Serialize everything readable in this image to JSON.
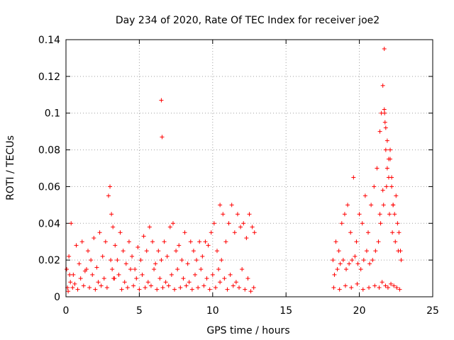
{
  "chart_data": {
    "type": "scatter",
    "title": "Day 234 of 2020, Rate Of TEC Index for receiver joe2",
    "xlabel": "GPS time / hours",
    "ylabel": "ROTI / TECUs",
    "xlim": [
      0,
      25
    ],
    "ylim": [
      0,
      0.14
    ],
    "x_ticks": [
      0,
      5,
      10,
      15,
      20,
      25
    ],
    "y_ticks": [
      0,
      0.02,
      0.04,
      0.06,
      0.08,
      0.1,
      0.12,
      0.14
    ],
    "x_tick_labels": [
      "0",
      "5",
      "10",
      "15",
      "20",
      "25"
    ],
    "y_tick_labels": [
      "0",
      "0.02",
      "0.04",
      "0.06",
      "0.08",
      "0.1",
      "0.12",
      "0.14"
    ],
    "grid": true,
    "marker": "+",
    "color": "#ff0000",
    "series": [
      {
        "x": [
          0.05,
          0.2,
          0.35,
          0.5,
          0.7,
          0.9,
          1.1,
          1.3,
          1.5,
          1.7,
          1.9,
          2.1,
          2.3,
          2.5,
          2.7,
          2.9,
          3.0,
          3.1,
          3.2,
          3.35,
          3.5,
          3.7,
          3.9,
          4.1,
          4.3,
          4.5,
          4.7,
          4.9,
          5.1,
          5.3,
          5.5,
          5.7,
          5.9,
          6.1,
          6.3,
          6.5,
          6.55,
          6.7,
          6.9,
          7.1,
          7.3,
          7.5,
          7.7,
          7.9,
          8.1,
          8.3,
          8.5,
          8.7,
          8.9,
          9.1,
          9.3,
          9.5,
          9.7,
          9.9,
          10.1,
          10.3,
          10.5,
          10.7,
          10.9,
          11.1,
          11.3,
          11.5,
          11.7,
          11.9,
          12.1,
          12.3,
          12.5,
          12.7,
          12.85,
          0.1,
          0.3,
          0.25,
          0.6,
          1.0,
          1.4,
          1.8,
          2.2,
          2.6,
          3.05,
          3.15,
          3.3,
          3.6,
          4.0,
          4.4,
          4.8,
          5.2,
          5.6,
          6.0,
          6.4,
          6.5,
          6.8,
          7.2,
          7.6,
          8.0,
          8.4,
          8.8,
          9.2,
          9.6,
          10.0,
          10.4,
          10.6,
          10.8,
          11.2,
          11.6,
          12.0,
          12.4,
          12.8,
          0.15,
          0.45,
          0.8,
          1.2,
          1.6,
          2.0,
          2.4,
          2.8,
          3.25,
          3.8,
          4.2,
          4.6,
          5.0,
          5.4,
          5.8,
          6.2,
          6.6,
          7.0,
          7.4,
          7.8,
          8.2,
          8.6,
          9.0,
          9.4,
          9.8,
          10.2,
          10.5,
          11.0,
          11.4,
          11.8,
          12.2,
          12.6,
          18.2,
          18.4,
          18.6,
          18.8,
          19.0,
          19.2,
          19.4,
          19.6,
          19.8,
          20.0,
          20.2,
          20.4,
          20.6,
          20.8,
          21.0,
          21.2,
          21.4,
          21.5,
          21.6,
          21.7,
          21.75,
          21.8,
          21.9,
          22.0,
          22.1,
          22.2,
          22.3,
          22.4,
          22.5,
          22.6,
          22.7,
          22.8,
          18.3,
          18.5,
          18.7,
          18.9,
          19.1,
          19.3,
          19.5,
          19.7,
          19.9,
          20.1,
          20.3,
          20.5,
          20.7,
          20.9,
          21.1,
          21.3,
          21.45,
          21.65,
          21.85,
          22.05,
          22.25,
          22.45,
          22.65,
          22.85,
          18.25,
          18.65,
          19.05,
          19.45,
          19.85,
          20.25,
          20.65,
          21.05,
          21.35,
          21.55,
          21.78,
          21.95,
          22.15,
          22.35,
          22.55,
          22.75,
          21.7,
          21.8,
          21.72,
          21.9,
          22.1,
          22.2,
          22.0,
          21.6,
          21.4,
          22.3
        ],
        "y": [
          0.015,
          0.022,
          0.04,
          0.012,
          0.028,
          0.018,
          0.03,
          0.014,
          0.025,
          0.02,
          0.032,
          0.016,
          0.035,
          0.022,
          0.03,
          0.055,
          0.06,
          0.045,
          0.038,
          0.028,
          0.02,
          0.035,
          0.025,
          0.018,
          0.03,
          0.022,
          0.015,
          0.027,
          0.02,
          0.033,
          0.025,
          0.038,
          0.03,
          0.018,
          0.025,
          0.107,
          0.087,
          0.03,
          0.022,
          0.038,
          0.04,
          0.025,
          0.028,
          0.02,
          0.035,
          0.018,
          0.03,
          0.025,
          0.02,
          0.03,
          0.022,
          0.03,
          0.028,
          0.035,
          0.04,
          0.025,
          0.05,
          0.045,
          0.03,
          0.04,
          0.05,
          0.035,
          0.045,
          0.038,
          0.04,
          0.032,
          0.045,
          0.038,
          0.035,
          0.005,
          0.008,
          0.012,
          0.007,
          0.01,
          0.015,
          0.012,
          0.008,
          0.01,
          0.02,
          0.015,
          0.01,
          0.012,
          0.008,
          0.015,
          0.01,
          0.012,
          0.008,
          0.015,
          0.01,
          0.02,
          0.008,
          0.012,
          0.015,
          0.01,
          0.008,
          0.012,
          0.015,
          0.01,
          0.012,
          0.015,
          0.02,
          0.01,
          0.012,
          0.008,
          0.015,
          0.01,
          0.005,
          0.003,
          0.005,
          0.004,
          0.006,
          0.005,
          0.004,
          0.006,
          0.005,
          0.01,
          0.004,
          0.005,
          0.006,
          0.004,
          0.005,
          0.006,
          0.004,
          0.005,
          0.006,
          0.004,
          0.005,
          0.006,
          0.004,
          0.005,
          0.006,
          0.004,
          0.005,
          0.008,
          0.004,
          0.006,
          0.005,
          0.004,
          0.003,
          0.02,
          0.03,
          0.025,
          0.04,
          0.045,
          0.05,
          0.035,
          0.065,
          0.03,
          0.045,
          0.04,
          0.055,
          0.035,
          0.05,
          0.06,
          0.07,
          0.09,
          0.1,
          0.115,
          0.135,
          0.095,
          0.08,
          0.085,
          0.065,
          0.075,
          0.06,
          0.05,
          0.045,
          0.055,
          0.04,
          0.035,
          0.025,
          0.012,
          0.015,
          0.018,
          0.02,
          0.015,
          0.018,
          0.02,
          0.022,
          0.018,
          0.015,
          0.02,
          0.025,
          0.018,
          0.02,
          0.025,
          0.03,
          0.04,
          0.05,
          0.06,
          0.045,
          0.035,
          0.03,
          0.025,
          0.02,
          0.005,
          0.004,
          0.006,
          0.005,
          0.007,
          0.004,
          0.005,
          0.006,
          0.005,
          0.008,
          0.006,
          0.005,
          0.007,
          0.006,
          0.005,
          0.004,
          0.102,
          0.092,
          0.1,
          0.07,
          0.08,
          0.065,
          0.075,
          0.058,
          0.045,
          0.05
        ]
      }
    ]
  }
}
